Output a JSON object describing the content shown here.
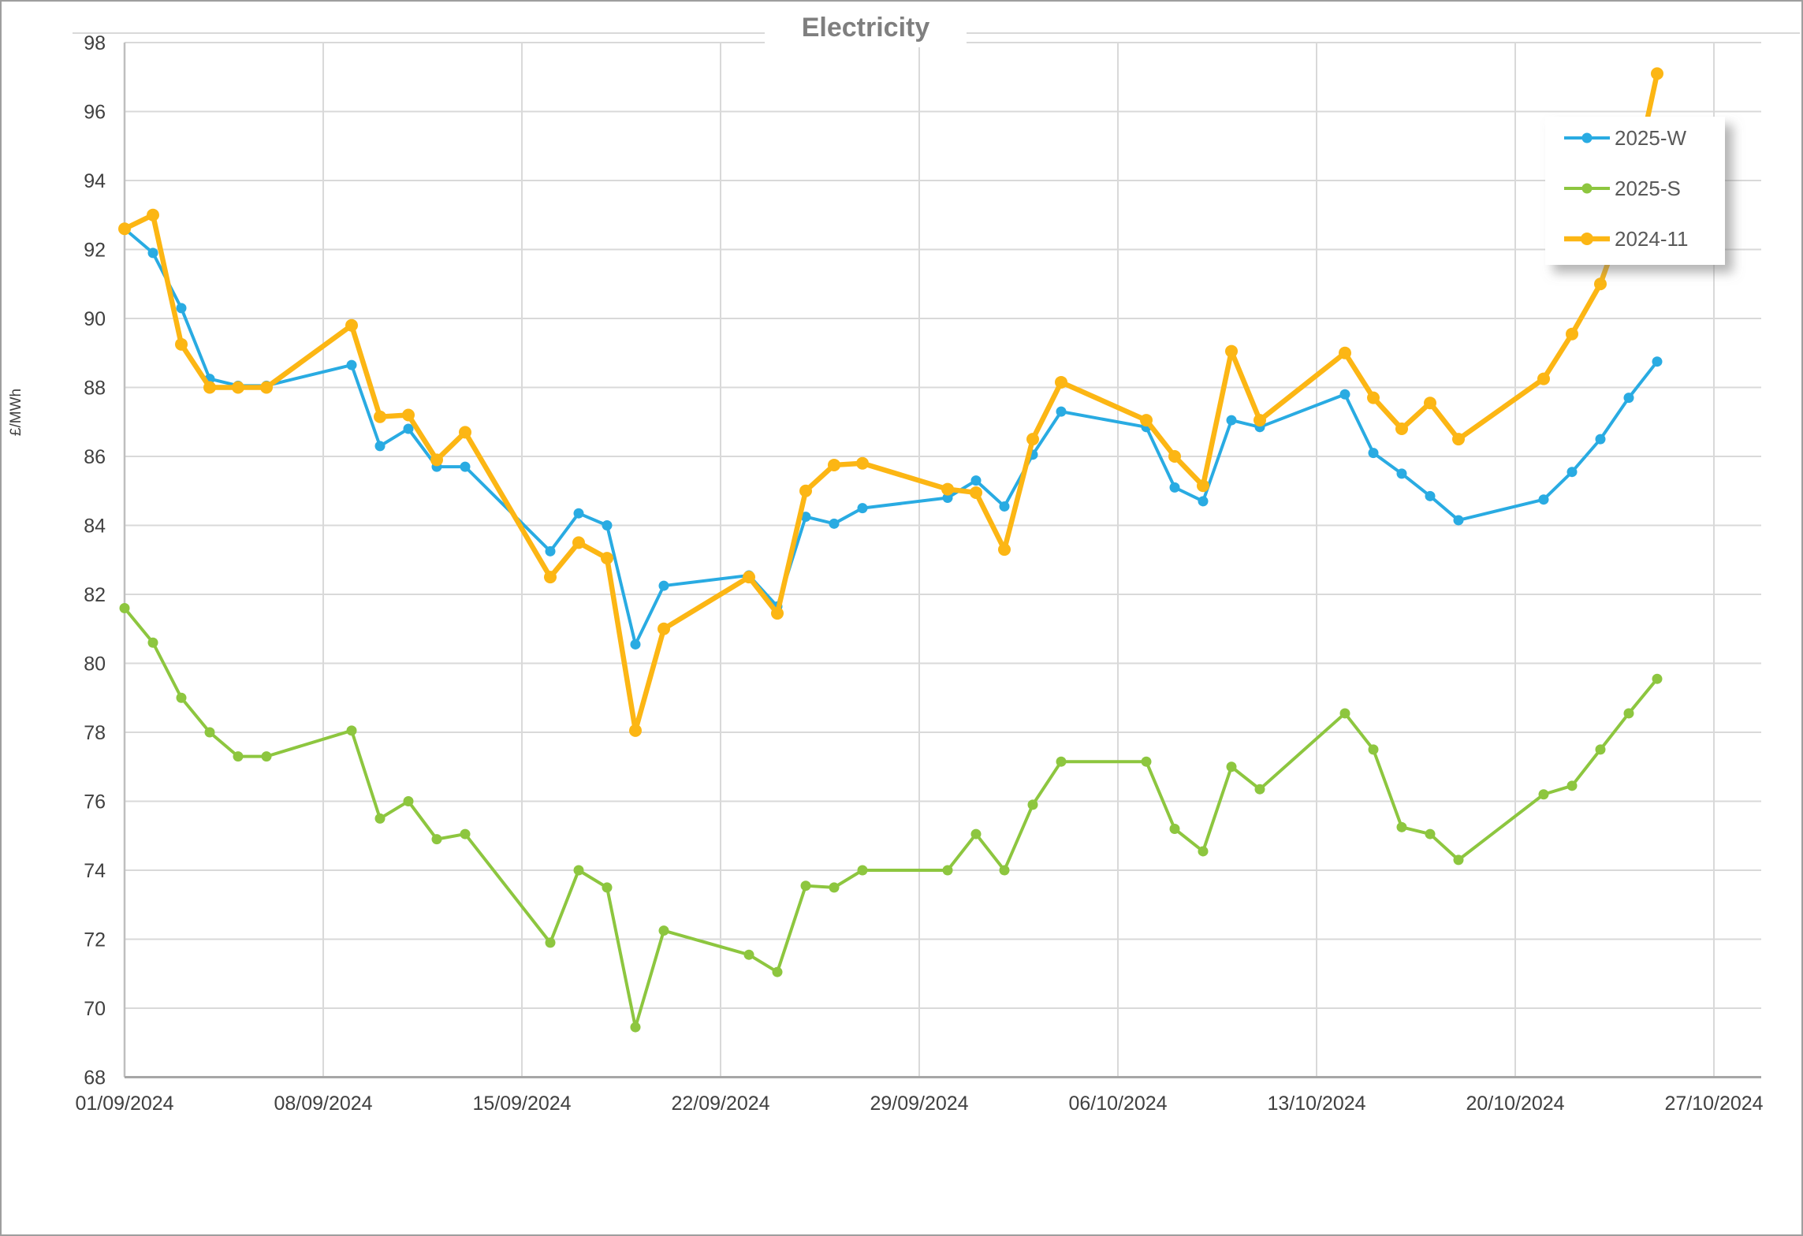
{
  "title": "Electricity",
  "y_axis_label": "£/MWh",
  "legend": {
    "position": "top-right",
    "items": [
      {
        "label": "2025-W",
        "color": "#29ABE2"
      },
      {
        "label": "2025-S",
        "color": "#8DC63F"
      },
      {
        "label": "2024-11",
        "color": "#FCB614"
      }
    ]
  },
  "chart_data": {
    "type": "line",
    "title": "Electricity",
    "xlabel": "",
    "ylabel": "£/MWh",
    "ylim": [
      68,
      98
    ],
    "y_tick_step": 2,
    "grid": true,
    "legend_position": "top-right",
    "x_axis_note": "daily weekday quotes (weekends skipped, gaps bridged by straight segments), date axis dd/mm/yyyy",
    "x_tick_labels": [
      "01/09/2024",
      "08/09/2024",
      "15/09/2024",
      "22/09/2024",
      "29/09/2024",
      "06/10/2024",
      "13/10/2024",
      "20/10/2024",
      "27/10/2024"
    ],
    "dates": [
      "01/09/2024",
      "02/09/2024",
      "03/09/2024",
      "04/09/2024",
      "05/09/2024",
      "06/09/2024",
      "09/09/2024",
      "10/09/2024",
      "11/09/2024",
      "12/09/2024",
      "13/09/2024",
      "16/09/2024",
      "17/09/2024",
      "18/09/2024",
      "19/09/2024",
      "20/09/2024",
      "23/09/2024",
      "24/09/2024",
      "25/09/2024",
      "26/09/2024",
      "27/09/2024",
      "30/09/2024",
      "01/10/2024",
      "02/10/2024",
      "03/10/2024",
      "04/10/2024",
      "07/10/2024",
      "08/10/2024",
      "09/10/2024",
      "10/10/2024",
      "11/10/2024",
      "14/10/2024",
      "15/10/2024",
      "16/10/2024",
      "17/10/2024",
      "18/10/2024",
      "21/10/2024",
      "22/10/2024",
      "23/10/2024",
      "24/10/2024",
      "25/10/2024"
    ],
    "series": [
      {
        "name": "2025-W",
        "color": "#29ABE2",
        "line_width": 4,
        "marker_radius": 6.5,
        "values": [
          92.6,
          91.9,
          90.3,
          88.25,
          88.05,
          88.05,
          88.65,
          86.3,
          86.8,
          85.7,
          85.7,
          83.25,
          84.35,
          84.0,
          80.55,
          82.25,
          82.55,
          81.65,
          84.25,
          84.05,
          84.5,
          84.8,
          85.3,
          84.55,
          86.05,
          87.3,
          86.85,
          85.1,
          84.7,
          87.05,
          86.85,
          87.8,
          86.1,
          85.5,
          84.85,
          84.15,
          84.75,
          85.55,
          86.5,
          87.7,
          88.75
        ]
      },
      {
        "name": "2025-S",
        "color": "#8DC63F",
        "line_width": 4,
        "marker_radius": 6.5,
        "values": [
          81.6,
          80.6,
          79.0,
          78.0,
          77.3,
          77.3,
          78.05,
          75.5,
          76.0,
          74.9,
          75.05,
          71.9,
          74.0,
          73.5,
          69.45,
          72.25,
          71.55,
          71.05,
          73.55,
          73.5,
          74.0,
          74.0,
          75.05,
          74.0,
          75.9,
          77.15,
          77.15,
          75.2,
          74.55,
          77.0,
          76.35,
          78.55,
          77.5,
          75.25,
          75.05,
          74.3,
          76.2,
          76.45,
          77.5,
          78.55,
          79.55
        ]
      },
      {
        "name": "2024-11",
        "color": "#FCB614",
        "line_width": 6.5,
        "marker_radius": 8,
        "values": [
          92.6,
          93.0,
          89.25,
          88.0,
          88.0,
          88.0,
          89.8,
          87.15,
          87.2,
          85.9,
          86.7,
          82.5,
          83.5,
          83.05,
          78.05,
          81.0,
          82.5,
          81.45,
          85.0,
          85.75,
          85.8,
          85.05,
          84.95,
          83.3,
          86.5,
          88.15,
          87.05,
          86.0,
          85.15,
          89.05,
          87.05,
          89.0,
          87.7,
          86.8,
          87.55,
          86.5,
          88.25,
          89.55,
          91.0,
          93.3,
          97.1
        ]
      }
    ]
  }
}
